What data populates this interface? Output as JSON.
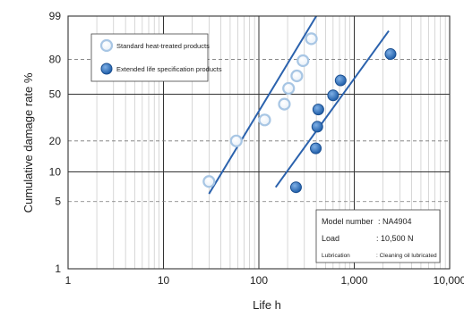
{
  "chart_data": {
    "type": "scatter",
    "x_scale": "log",
    "y_scale": "weibull",
    "xlabel": "Life h",
    "ylabel": "Cumulative damage rate %",
    "xlim": [
      1,
      10000
    ],
    "ylim": [
      1,
      99
    ],
    "x_ticks": [
      1,
      10,
      100,
      1000,
      10000
    ],
    "x_tick_labels": [
      "1",
      "10",
      "100",
      "1,000",
      "10,000"
    ],
    "y_ticks": [
      1,
      5,
      10,
      20,
      50,
      80,
      99
    ],
    "y_tick_labels": [
      "1",
      "5",
      "10",
      "20",
      "50",
      "80",
      "99"
    ],
    "grid": true,
    "legend_position": "top-left",
    "series": [
      {
        "name": "Standard heat-treated products",
        "color": "#a8c6e4",
        "marker": "hollow-circle",
        "points": [
          [
            30,
            8
          ],
          [
            58,
            20
          ],
          [
            115,
            31
          ],
          [
            185,
            42
          ],
          [
            205,
            55
          ],
          [
            250,
            66
          ],
          [
            290,
            79
          ],
          [
            355,
            93
          ]
        ],
        "fit_line": [
          [
            30,
            6
          ],
          [
            400,
            99
          ]
        ]
      },
      {
        "name": "Extended life specification products",
        "color": "#2f6fb8",
        "marker": "filled-circle",
        "points": [
          [
            245,
            7
          ],
          [
            395,
            17
          ],
          [
            410,
            27
          ],
          [
            420,
            38
          ],
          [
            600,
            49
          ],
          [
            720,
            62
          ],
          [
            2400,
            84
          ]
        ],
        "fit_line": [
          [
            150,
            7
          ],
          [
            2300,
            96
          ]
        ]
      }
    ],
    "info_box": {
      "rows": [
        {
          "label": "Model number",
          "value": ": NA4904"
        },
        {
          "label": "Load",
          "value": ": 10,500 N"
        },
        {
          "label": "Lubrication",
          "value": ": Cleaning oil lubricated"
        }
      ]
    }
  }
}
